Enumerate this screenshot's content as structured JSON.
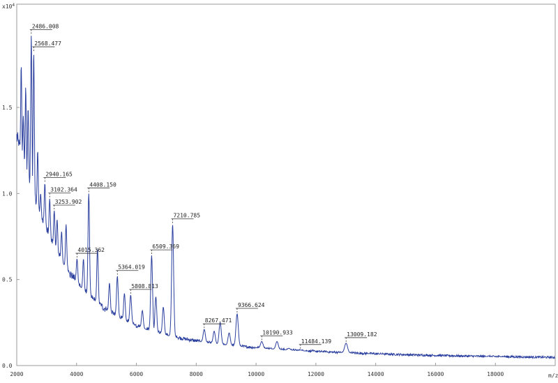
{
  "chart_data": {
    "type": "line",
    "title": "",
    "xlabel": "m/z",
    "ylabel": "",
    "y_exponent_label": "x10",
    "y_exponent_power": "4",
    "xlim": [
      2000,
      20000
    ],
    "ylim": [
      0.0,
      2.1
    ],
    "x_ticks": [
      2000,
      4000,
      6000,
      8000,
      10000,
      12000,
      14000,
      16000,
      18000
    ],
    "x_tick_labels": [
      "2000",
      "4000",
      "6000",
      "8000",
      "10000",
      "12000",
      "14000",
      "16000",
      "18000"
    ],
    "y_ticks": [
      0.0,
      0.5,
      1.0,
      1.5
    ],
    "y_tick_labels": [
      "0.0",
      "0.5",
      "1.0",
      "1.5"
    ],
    "grid": false,
    "legend": "none",
    "line_color": "#2b3f9e",
    "peaks": [
      {
        "label": "2486.008",
        "x": 2486.008,
        "y": 1.92
      },
      {
        "label": "2568.477",
        "x": 2568.477,
        "y": 1.82
      },
      {
        "label": "2940.165",
        "x": 2940.165,
        "y": 1.06
      },
      {
        "label": "3102.364",
        "x": 3102.364,
        "y": 0.97
      },
      {
        "label": "3253.902",
        "x": 3253.902,
        "y": 0.9
      },
      {
        "label": "4015.362",
        "x": 4015.362,
        "y": 0.62
      },
      {
        "label": "4408.150",
        "x": 4408.15,
        "y": 1.0
      },
      {
        "label": "5364.019",
        "x": 5364.019,
        "y": 0.52
      },
      {
        "label": "5808.813",
        "x": 5808.813,
        "y": 0.41
      },
      {
        "label": "6509.369",
        "x": 6509.369,
        "y": 0.64
      },
      {
        "label": "7210.785",
        "x": 7210.785,
        "y": 0.82
      },
      {
        "label": "8267.471",
        "x": 8267.471,
        "y": 0.21
      },
      {
        "label": "9366.624",
        "x": 9366.624,
        "y": 0.3
      },
      {
        "label": "10190.933",
        "x": 10190.933,
        "y": 0.14
      },
      {
        "label": "11484.139",
        "x": 11484.139,
        "y": 0.09
      },
      {
        "label": "13009.182",
        "x": 13009.182,
        "y": 0.13
      }
    ]
  }
}
